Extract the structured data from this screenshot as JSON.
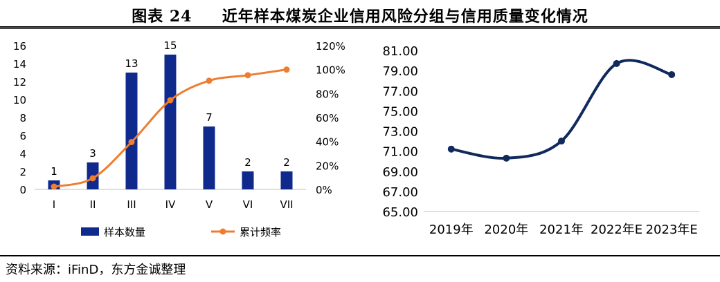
{
  "title": "图表 24     近年样本煤炭企业信用风险分组与信用质量变化情况",
  "source": "资料来源：iFinD，东方金诚整理",
  "colors": {
    "bar": "#0f2a8c",
    "cumulative_line": "#ed7d31",
    "score_line": "#102a5c",
    "axis": "#bfbfbf"
  },
  "chart_data": [
    {
      "type": "bar",
      "categories": [
        "I",
        "II",
        "III",
        "IV",
        "V",
        "VI",
        "VII"
      ],
      "series": [
        {
          "name": "样本数量",
          "type": "bar",
          "axis": "left",
          "values": [
            1,
            3,
            13,
            15,
            7,
            2,
            2
          ]
        },
        {
          "name": "累计频率",
          "type": "line",
          "axis": "right",
          "values": [
            2.3,
            9.3,
            39.5,
            74.4,
            90.7,
            95.3,
            100
          ]
        }
      ],
      "data_labels": [
        "1",
        "3",
        "13",
        "15",
        "7",
        "2",
        "2"
      ],
      "ylim": [
        0,
        16
      ],
      "yticks": [
        "0",
        "2",
        "4",
        "6",
        "8",
        "10",
        "12",
        "14",
        "16"
      ],
      "y2lim": [
        0,
        120
      ],
      "y2ticks": [
        "0%",
        "20%",
        "40%",
        "60%",
        "80%",
        "100%",
        "120%"
      ],
      "legend": [
        "样本数量",
        "累计频率"
      ],
      "legend_position": "bottom"
    },
    {
      "type": "line",
      "categories": [
        "2019年",
        "2020年",
        "2021年",
        "2022年E",
        "2023年E"
      ],
      "values": [
        71.2,
        70.3,
        72.0,
        79.7,
        78.6
      ],
      "ylim": [
        65,
        81
      ],
      "yticks": [
        "65.00",
        "67.00",
        "69.00",
        "71.00",
        "73.00",
        "75.00",
        "77.00",
        "79.00",
        "81.00"
      ]
    }
  ]
}
